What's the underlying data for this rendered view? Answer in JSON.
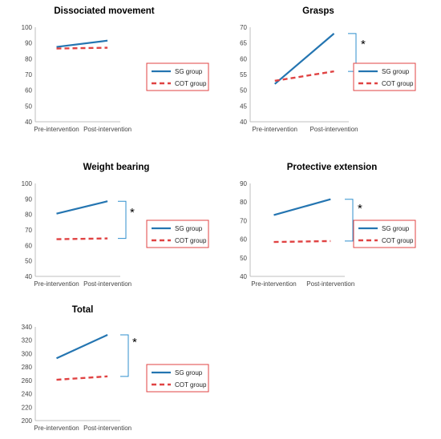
{
  "colors": {
    "sg": "#2475b1",
    "cot": "#e04343",
    "axis": "#bfbfbf",
    "bracket": "#2f8fce",
    "legend_border": "#e04343"
  },
  "chart_data": [
    {
      "type": "line",
      "title": "Dissociated movement",
      "categories": [
        "Pre-intervention",
        "Post-intervention"
      ],
      "ylim": [
        40,
        100
      ],
      "yticks": [
        "40",
        "50",
        "60",
        "70",
        "80",
        "90",
        "100"
      ],
      "series": [
        {
          "name": "SG group",
          "values": [
            87.5,
            91.5
          ]
        },
        {
          "name": "COT group",
          "values": [
            86.5,
            87.0
          ]
        }
      ],
      "significance": ""
    },
    {
      "type": "line",
      "title": "Grasps",
      "categories": [
        "Pre-intervention",
        "Post-intervention"
      ],
      "ylim": [
        40,
        70
      ],
      "yticks": [
        "40",
        "45",
        "50",
        "55",
        "60",
        "65",
        "70"
      ],
      "series": [
        {
          "name": "SG group",
          "values": [
            52.0,
            68.0
          ]
        },
        {
          "name": "COT group",
          "values": [
            53.0,
            56.0
          ]
        }
      ],
      "significance": "*"
    },
    {
      "type": "line",
      "title": "Weight bearing",
      "categories": [
        "Pre-intervention",
        "Post-intervention"
      ],
      "ylim": [
        40,
        100
      ],
      "yticks": [
        "40",
        "50",
        "60",
        "70",
        "80",
        "90",
        "100"
      ],
      "series": [
        {
          "name": "SG group",
          "values": [
            80.5,
            88.5
          ]
        },
        {
          "name": "COT group",
          "values": [
            64.0,
            64.5
          ]
        }
      ],
      "significance": "*"
    },
    {
      "type": "line",
      "title": "Protective extension",
      "categories": [
        "Pre-intervention",
        "Post-intervention"
      ],
      "ylim": [
        40,
        90
      ],
      "yticks": [
        "40",
        "50",
        "60",
        "70",
        "80",
        "90"
      ],
      "series": [
        {
          "name": "SG group",
          "values": [
            73.0,
            81.5
          ]
        },
        {
          "name": "COT group",
          "values": [
            58.5,
            59.0
          ]
        }
      ],
      "significance": "*"
    },
    {
      "type": "line",
      "title": "Total",
      "categories": [
        "Pre-intervention",
        "Post-intervention"
      ],
      "ylim": [
        200,
        340
      ],
      "yticks": [
        "200",
        "220",
        "240",
        "260",
        "280",
        "300",
        "320",
        "340"
      ],
      "series": [
        {
          "name": "SG group",
          "values": [
            293,
            328
          ]
        },
        {
          "name": "COT group",
          "values": [
            261,
            266
          ]
        }
      ],
      "significance": "*"
    }
  ]
}
